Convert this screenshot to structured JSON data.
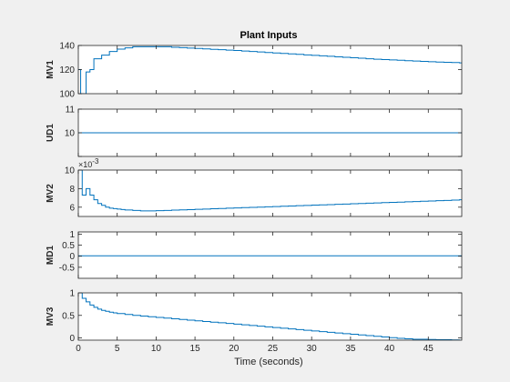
{
  "title": "Plant Inputs",
  "xlabel": "Time (seconds)",
  "colors": {
    "line": "#0072bd",
    "axes_bg": "#ffffff",
    "figure_bg": "#f0f0f0",
    "axis": "#262626"
  },
  "chart_data": [
    {
      "type": "line",
      "ylabel": "MV1",
      "xlim": [
        0,
        49.3
      ],
      "ylim": [
        100,
        140
      ],
      "xticks": [
        0,
        5,
        10,
        15,
        20,
        25,
        30,
        35,
        40,
        45
      ],
      "yticks": [
        100,
        120,
        140
      ],
      "ytick_labels": [
        "100",
        "120",
        "140"
      ],
      "step": true,
      "x": [
        0,
        1,
        2,
        3,
        4,
        5,
        6,
        7,
        8,
        9,
        10,
        11,
        12,
        13,
        14,
        15,
        16,
        17,
        18,
        19,
        20,
        21,
        22,
        23,
        24,
        25,
        26,
        27,
        28,
        29,
        30,
        31,
        32,
        33,
        34,
        35,
        36,
        37,
        38,
        39,
        40,
        41,
        42,
        43,
        44,
        45,
        46,
        47,
        48,
        49
      ],
      "y": [
        120,
        120,
        129,
        132,
        135,
        137,
        138,
        139,
        139,
        139,
        139,
        139,
        138.5,
        138.2,
        137.8,
        137.5,
        137.2,
        136.8,
        136.5,
        136.1,
        135.8,
        135.4,
        135,
        134.6,
        134.2,
        133.8,
        133.4,
        133,
        132.6,
        132.2,
        131.8,
        131.4,
        131,
        130.6,
        130.2,
        129.8,
        129.4,
        129,
        128.6,
        128.3,
        128,
        127.7,
        127.4,
        127.1,
        126.8,
        126.5,
        126.2,
        126,
        125.8,
        125.6
      ],
      "pre": {
        "x": [
          0,
          0.3,
          0.3,
          1,
          1,
          1.5
        ],
        "y": [
          120,
          120,
          100,
          100,
          118,
          118
        ]
      }
    },
    {
      "type": "line",
      "ylabel": "UD1",
      "xlim": [
        0,
        49.3
      ],
      "ylim": [
        9,
        11
      ],
      "xticks": [
        0,
        5,
        10,
        15,
        20,
        25,
        30,
        35,
        40,
        45
      ],
      "yticks": [
        9,
        10,
        11
      ],
      "ytick_labels": [
        "",
        "10",
        "11"
      ],
      "step": true,
      "x": [
        0,
        49.3
      ],
      "y": [
        10,
        10
      ]
    },
    {
      "type": "line",
      "ylabel": "MV2",
      "exponent_label": "×10",
      "exponent_power": "-3",
      "xlim": [
        0,
        49.3
      ],
      "ylim": [
        0.005,
        0.01
      ],
      "xticks": [
        0,
        5,
        10,
        15,
        20,
        25,
        30,
        35,
        40,
        45
      ],
      "yticks": [
        0.006,
        0.008,
        0.01
      ],
      "ytick_labels": [
        "6",
        "8",
        "10"
      ],
      "step": true,
      "x": [
        0,
        0.5,
        1,
        1.5,
        2,
        2.5,
        3,
        3.5,
        4,
        4.5,
        5,
        5.5,
        6,
        7,
        8,
        9,
        10,
        11,
        12,
        13,
        14,
        15,
        16,
        17,
        18,
        19,
        20,
        21,
        22,
        23,
        24,
        25,
        26,
        27,
        28,
        29,
        30,
        31,
        32,
        33,
        34,
        35,
        36,
        37,
        38,
        39,
        40,
        41,
        42,
        43,
        44,
        45,
        46,
        47,
        48,
        49
      ],
      "y": [
        0.01,
        0.0073,
        0.008,
        0.0073,
        0.0068,
        0.0064,
        0.0062,
        0.006,
        0.0059,
        0.00585,
        0.0058,
        0.00575,
        0.0057,
        0.00565,
        0.0056,
        0.0056,
        0.00562,
        0.00565,
        0.00568,
        0.00571,
        0.00574,
        0.00577,
        0.0058,
        0.00583,
        0.00586,
        0.00589,
        0.00592,
        0.00595,
        0.00598,
        0.00601,
        0.00604,
        0.00607,
        0.0061,
        0.00613,
        0.00616,
        0.00619,
        0.00622,
        0.00625,
        0.00628,
        0.00631,
        0.00634,
        0.00637,
        0.0064,
        0.00643,
        0.00646,
        0.00649,
        0.00652,
        0.00655,
        0.00658,
        0.00661,
        0.00664,
        0.00667,
        0.0067,
        0.00673,
        0.00676,
        0.0068
      ]
    },
    {
      "type": "line",
      "ylabel": "MD1",
      "xlim": [
        0,
        49.3
      ],
      "ylim": [
        -1,
        1.1
      ],
      "xticks": [
        0,
        5,
        10,
        15,
        20,
        25,
        30,
        35,
        40,
        45
      ],
      "yticks": [
        -0.5,
        0,
        0.5,
        1
      ],
      "ytick_labels": [
        "-0.5",
        "0",
        "0.5",
        "1"
      ],
      "step": true,
      "x": [
        0,
        49.3
      ],
      "y": [
        0.02,
        0.02
      ]
    },
    {
      "type": "line",
      "ylabel": "MV3",
      "xlim": [
        0,
        49.3
      ],
      "ylim": [
        -0.05,
        1
      ],
      "xticks": [
        0,
        5,
        10,
        15,
        20,
        25,
        30,
        35,
        40,
        45
      ],
      "xtick_labels": [
        "0",
        "5",
        "10",
        "15",
        "20",
        "25",
        "30",
        "35",
        "40",
        "45"
      ],
      "yticks": [
        0,
        0.5,
        1
      ],
      "ytick_labels": [
        "0",
        "0.5",
        "1"
      ],
      "step": true,
      "x": [
        0,
        0.5,
        1,
        1.5,
        2,
        2.5,
        3,
        3.5,
        4,
        4.5,
        5,
        6,
        7,
        8,
        9,
        10,
        11,
        12,
        13,
        14,
        15,
        16,
        17,
        18,
        19,
        20,
        21,
        22,
        23,
        24,
        25,
        26,
        27,
        28,
        29,
        30,
        31,
        32,
        33,
        34,
        35,
        36,
        37,
        38,
        39,
        40,
        41,
        42,
        43,
        44,
        45,
        46,
        47,
        48,
        49
      ],
      "y": [
        1.0,
        0.88,
        0.8,
        0.73,
        0.68,
        0.64,
        0.61,
        0.59,
        0.57,
        0.555,
        0.54,
        0.52,
        0.5,
        0.485,
        0.47,
        0.455,
        0.44,
        0.425,
        0.41,
        0.395,
        0.38,
        0.365,
        0.35,
        0.335,
        0.32,
        0.305,
        0.29,
        0.275,
        0.26,
        0.245,
        0.23,
        0.215,
        0.2,
        0.185,
        0.17,
        0.155,
        0.14,
        0.125,
        0.11,
        0.095,
        0.08,
        0.065,
        0.05,
        0.035,
        0.02,
        0.005,
        -0.01,
        -0.02,
        -0.03,
        -0.03,
        -0.035,
        -0.04,
        -0.04,
        -0.045,
        -0.05
      ]
    }
  ]
}
